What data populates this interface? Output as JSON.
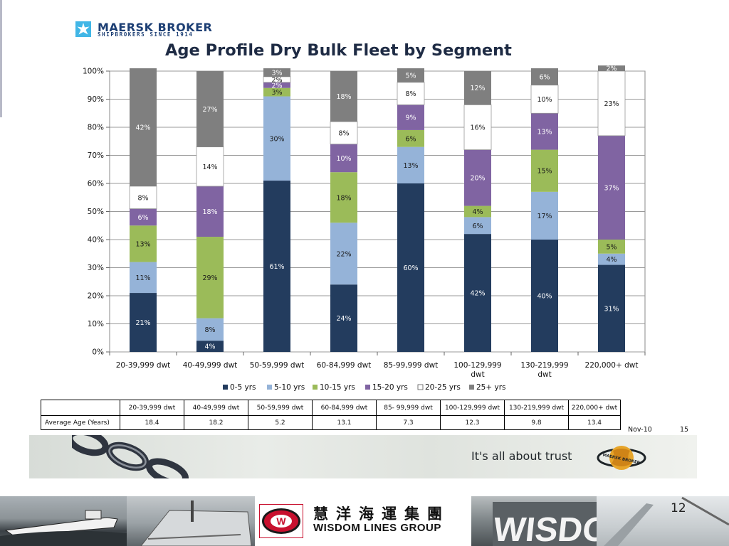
{
  "brand": {
    "name": "MAERSK BROKER",
    "tagline": "SHIPBROKERS SINCE 1914"
  },
  "page_title": "Age Profile Dry Bulk Fleet by Segment",
  "chart_data": {
    "type": "bar",
    "stacked": true,
    "title": "Age Profile Dry Bulk Fleet by Segment",
    "categories": [
      [
        "20-39,999 dwt"
      ],
      [
        "40-49,999 dwt"
      ],
      [
        "50-59,999 dwt"
      ],
      [
        "60-84,999 dwt"
      ],
      [
        "85-99,999 dwt"
      ],
      [
        "100-129,999",
        "dwt"
      ],
      [
        "130-219,999",
        "dwt"
      ],
      [
        "220,000+ dwt"
      ]
    ],
    "series": [
      {
        "name": "0-5 yrs",
        "color": "#233c5e",
        "values": [
          21,
          4,
          61,
          24,
          60,
          42,
          40,
          31
        ]
      },
      {
        "name": "5-10 yrs",
        "color": "#95b3d8",
        "values": [
          11,
          8,
          30,
          22,
          13,
          6,
          17,
          4
        ]
      },
      {
        "name": "10-15 yrs",
        "color": "#9bbb59",
        "values": [
          13,
          29,
          3,
          18,
          6,
          4,
          15,
          5
        ]
      },
      {
        "name": "15-20 yrs",
        "color": "#8064a2",
        "values": [
          6,
          18,
          2,
          10,
          9,
          20,
          13,
          37
        ]
      },
      {
        "name": "20-25 yrs",
        "color": "#ffffff",
        "values": [
          8,
          14,
          2,
          8,
          8,
          16,
          10,
          23
        ]
      },
      {
        "name": "25+ yrs",
        "color": "#7f7f7f",
        "values": [
          42,
          27,
          3,
          18,
          5,
          12,
          6,
          2
        ]
      }
    ],
    "ylim": [
      0,
      100
    ],
    "yticks": [
      "0%",
      "10%",
      "20%",
      "30%",
      "40%",
      "50%",
      "60%",
      "70%",
      "80%",
      "90%",
      "100%"
    ],
    "value_suffix": "%",
    "grid": true,
    "legend": "bottom"
  },
  "table": {
    "columns": [
      "20-39,999 dwt",
      "40-49,999 dwt",
      "50-59,999 dwt",
      "60-84,999 dwt",
      "85- 99,999 dwt",
      "100-129,999 dwt",
      "130-219,999 dwt",
      "220,000+ dwt"
    ],
    "row_label": "Average Age (Years)",
    "values": [
      "18.4",
      "18.2",
      "5.2",
      "13.1",
      "7.3",
      "12.3",
      "9.8",
      "13.4"
    ]
  },
  "note": {
    "date": "Nov-10",
    "page": "15"
  },
  "banner": {
    "tagline": "It's all about trust",
    "badge": "MAERSK BROKER"
  },
  "footer": {
    "company_cn": "慧洋海運集團",
    "company_en": "WISDOM LINES GROUP",
    "badge": "W",
    "ship_text": "WISDOM",
    "page_number": "12"
  }
}
